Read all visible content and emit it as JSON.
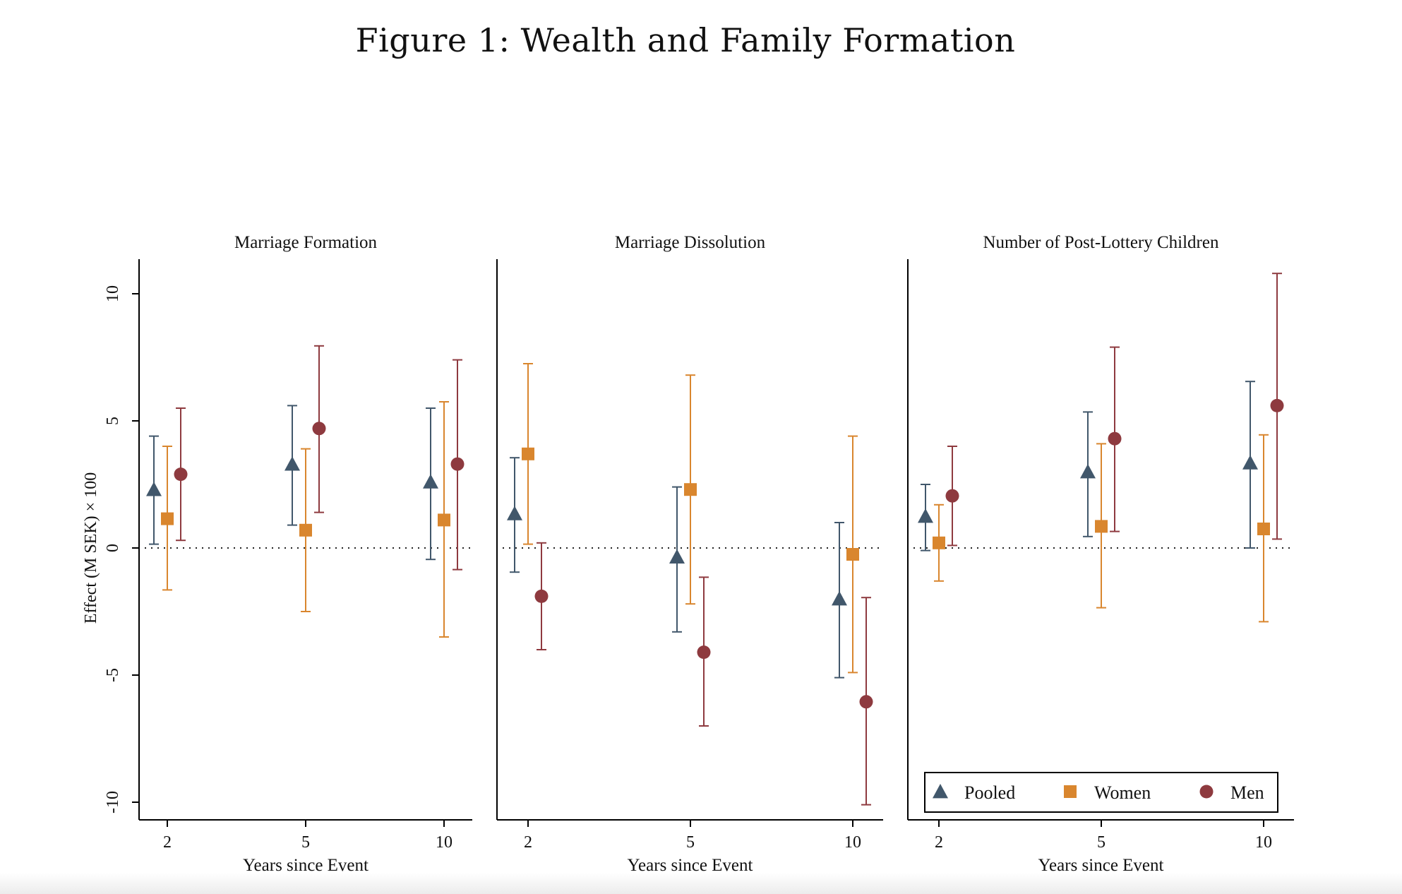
{
  "figure_title": "Figure 1: Wealth and Family Formation",
  "colors": {
    "pooled": "#41576b",
    "women": "#d9862e",
    "men": "#8e3a3f",
    "axis": "#000000"
  },
  "chart_data": {
    "type": "scatter",
    "ylabel": "Effect (M SEK) × 100",
    "xlabel": "Years since Event",
    "ylim": [
      -11,
      10.5
    ],
    "yticks": [
      10,
      5,
      0,
      -5,
      -10
    ],
    "xcategories": [
      "2",
      "5",
      "10"
    ],
    "reference_line": 0,
    "legend": {
      "placement": "inside-bottom of third panel",
      "entries": [
        {
          "key": "pooled",
          "label": "Pooled",
          "marker": "triangle"
        },
        {
          "key": "women",
          "label": "Women",
          "marker": "square"
        },
        {
          "key": "men",
          "label": "Men",
          "marker": "circle"
        }
      ]
    },
    "panels": [
      {
        "title": "Marriage Formation",
        "series": [
          {
            "name": "Pooled",
            "key": "pooled",
            "points": [
              {
                "x": "2",
                "y": 2.3,
                "lo": 0.15,
                "hi": 4.4
              },
              {
                "x": "5",
                "y": 3.3,
                "lo": 0.9,
                "hi": 5.6
              },
              {
                "x": "10",
                "y": 2.6,
                "lo": -0.45,
                "hi": 5.5
              }
            ]
          },
          {
            "name": "Women",
            "key": "women",
            "points": [
              {
                "x": "2",
                "y": 1.15,
                "lo": -1.65,
                "hi": 4.0
              },
              {
                "x": "5",
                "y": 0.7,
                "lo": -2.5,
                "hi": 3.9
              },
              {
                "x": "10",
                "y": 1.1,
                "lo": -3.5,
                "hi": 5.75
              }
            ]
          },
          {
            "name": "Men",
            "key": "men",
            "points": [
              {
                "x": "2",
                "y": 2.9,
                "lo": 0.3,
                "hi": 5.5
              },
              {
                "x": "5",
                "y": 4.7,
                "lo": 1.4,
                "hi": 7.95
              },
              {
                "x": "10",
                "y": 3.3,
                "lo": -0.85,
                "hi": 7.4
              }
            ]
          }
        ]
      },
      {
        "title": "Marriage Dissolution",
        "series": [
          {
            "name": "Pooled",
            "key": "pooled",
            "points": [
              {
                "x": "2",
                "y": 1.35,
                "lo": -0.95,
                "hi": 3.55
              },
              {
                "x": "5",
                "y": -0.35,
                "lo": -3.3,
                "hi": 2.4
              },
              {
                "x": "10",
                "y": -2.0,
                "lo": -5.1,
                "hi": 1.0
              }
            ]
          },
          {
            "name": "Women",
            "key": "women",
            "points": [
              {
                "x": "2",
                "y": 3.7,
                "lo": 0.15,
                "hi": 7.25
              },
              {
                "x": "5",
                "y": 2.3,
                "lo": -2.2,
                "hi": 6.8
              },
              {
                "x": "10",
                "y": -0.25,
                "lo": -4.9,
                "hi": 4.4
              }
            ]
          },
          {
            "name": "Men",
            "key": "men",
            "points": [
              {
                "x": "2",
                "y": -1.9,
                "lo": -4.0,
                "hi": 0.2
              },
              {
                "x": "5",
                "y": -4.1,
                "lo": -7.0,
                "hi": -1.15
              },
              {
                "x": "10",
                "y": -6.05,
                "lo": -10.1,
                "hi": -1.95
              }
            ]
          }
        ]
      },
      {
        "title": "Number of Post-Lottery Children",
        "series": [
          {
            "name": "Pooled",
            "key": "pooled",
            "points": [
              {
                "x": "2",
                "y": 1.25,
                "lo": -0.1,
                "hi": 2.5
              },
              {
                "x": "5",
                "y": 3.0,
                "lo": 0.45,
                "hi": 5.35
              },
              {
                "x": "10",
                "y": 3.35,
                "lo": 0.0,
                "hi": 6.55
              }
            ]
          },
          {
            "name": "Women",
            "key": "women",
            "points": [
              {
                "x": "2",
                "y": 0.2,
                "lo": -1.3,
                "hi": 1.7
              },
              {
                "x": "5",
                "y": 0.85,
                "lo": -2.35,
                "hi": 4.1
              },
              {
                "x": "10",
                "y": 0.75,
                "lo": -2.9,
                "hi": 4.45
              }
            ]
          },
          {
            "name": "Men",
            "key": "men",
            "points": [
              {
                "x": "2",
                "y": 2.05,
                "lo": 0.1,
                "hi": 4.0
              },
              {
                "x": "5",
                "y": 4.3,
                "lo": 0.65,
                "hi": 7.9
              },
              {
                "x": "10",
                "y": 5.6,
                "lo": 0.35,
                "hi": 10.8
              }
            ]
          }
        ]
      }
    ]
  }
}
